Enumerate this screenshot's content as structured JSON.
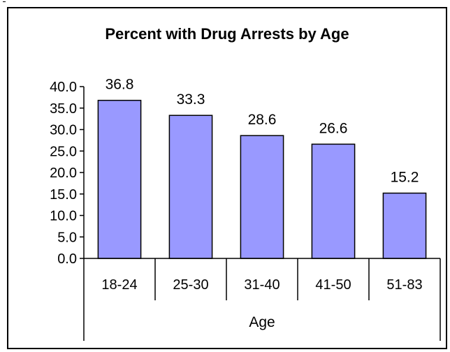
{
  "colors": {
    "bar_fill": "#9999FF",
    "bar_stroke": "#000000"
  },
  "chart_data": {
    "type": "bar",
    "title": "Percent with Drug Arrests by Age",
    "xlabel": "Age",
    "ylabel": "",
    "categories": [
      "18-24",
      "25-30",
      "31-40",
      "41-50",
      "51-83"
    ],
    "values": [
      36.8,
      33.3,
      28.6,
      26.6,
      15.2
    ],
    "value_labels": [
      "36.8",
      "33.3",
      "28.6",
      "26.6",
      "15.2"
    ],
    "y_ticks": [
      "0.0",
      "5.0",
      "10.0",
      "15.0",
      "20.0",
      "25.0",
      "30.0",
      "35.0",
      "40.0"
    ],
    "ylim": [
      0,
      40
    ],
    "grid": false,
    "legend": "none"
  }
}
